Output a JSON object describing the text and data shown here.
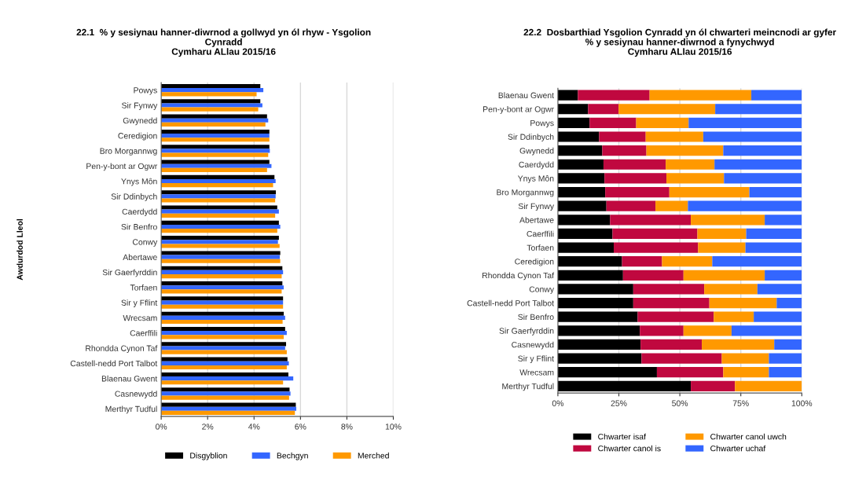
{
  "chart_data": [
    {
      "type": "bar",
      "orientation": "horizontal",
      "title": "22.1  % y sesiynau hanner-diwrnod a gollwyd yn ól rhyw - Ysgolion\nCynradd\nCymharu ALlau 2015/16",
      "ylabel": "Awdurdod Lleol",
      "categories": [
        "Powys",
        "Sir Fynwy",
        "Gwynedd",
        "Ceredigion",
        "Bro Morgannwg",
        "Pen-y-bont ar Ogwr",
        "Ynys Môn",
        "Sir Ddinbych",
        "Caerdydd",
        "Sir Benfro",
        "Conwy",
        "Abertawe",
        "Sir Gaerfyrddin",
        "Torfaen",
        "Sir y Fflint",
        "Wrecsam",
        "Caerffili",
        "Rhondda Cynon Taf",
        "Castell-nedd Port Talbot",
        "Blaenau Gwent",
        "Casnewydd",
        "Merthyr Tudful"
      ],
      "series": [
        {
          "name": "Disgyblion",
          "color": "#000000",
          "values": [
            4.27,
            4.27,
            4.56,
            4.66,
            4.66,
            4.66,
            4.88,
            4.94,
            5.0,
            5.07,
            5.07,
            5.13,
            5.22,
            5.22,
            5.25,
            5.28,
            5.34,
            5.38,
            5.44,
            5.48,
            5.53,
            5.8
          ]
        },
        {
          "name": "Bechgyn",
          "color": "#3366ff",
          "values": [
            4.4,
            4.36,
            4.61,
            4.66,
            4.68,
            4.75,
            4.93,
            4.93,
            5.07,
            5.13,
            5.03,
            5.11,
            5.25,
            5.28,
            5.25,
            5.34,
            5.41,
            5.34,
            5.5,
            5.69,
            5.57,
            5.82
          ]
        },
        {
          "name": "Merched",
          "color": "#ff9900",
          "values": [
            4.11,
            4.18,
            4.49,
            4.66,
            4.61,
            4.56,
            4.82,
            4.91,
            4.91,
            5.0,
            5.1,
            5.13,
            5.19,
            5.19,
            5.25,
            5.23,
            5.28,
            5.41,
            5.41,
            5.25,
            5.51,
            5.76
          ]
        }
      ],
      "xlim": [
        0,
        10
      ],
      "xticks": [
        {
          "value": 0,
          "label": "0%"
        },
        {
          "value": 2,
          "label": "2%"
        },
        {
          "value": 4,
          "label": "4%"
        },
        {
          "value": 6,
          "label": "6%"
        },
        {
          "value": 8,
          "label": "8%"
        },
        {
          "value": 10,
          "label": "10%"
        }
      ],
      "grid": "x",
      "legend": "bottom"
    },
    {
      "type": "bar",
      "orientation": "horizontal",
      "stacked": true,
      "title": "22.2  Dosbarthiad Ysgolion Cynradd yn ól chwarteri meincnodi ar gyfer\n% y sesiynau hanner-diwrnod a fynychwyd\nCymharu ALlau 2015/16",
      "categories": [
        "Blaenau Gwent",
        "Pen-y-bont ar Ogwr",
        "Powys",
        "Sir Ddinbych",
        "Gwynedd",
        "Caerdydd",
        "Ynys Môn",
        "Bro Morgannwg",
        "Sir Fynwy",
        "Abertawe",
        "Caerffili",
        "Torfaen",
        "Ceredigion",
        "Rhondda Cynon Taf",
        "Conwy",
        "Castell-nedd Port Talbot",
        "Sir Benfro",
        "Sir Gaerfyrddin",
        "Casnewydd",
        "Sir y Fflint",
        "Wrecsam",
        "Merthyr Tudful"
      ],
      "series": [
        {
          "name": "Chwarter isaf",
          "color": "#000000",
          "values": [
            8.2,
            12.4,
            13.0,
            16.9,
            18.2,
            18.7,
            19.1,
            19.4,
            19.9,
            21.4,
            22.4,
            22.9,
            26.3,
            26.7,
            30.9,
            30.9,
            32.7,
            33.6,
            33.9,
            34.3,
            40.6,
            54.5
          ]
        },
        {
          "name": "Chwarter canol is",
          "color": "#c0083f",
          "values": [
            29.4,
            12.5,
            19.1,
            19.1,
            18.1,
            25.5,
            25.4,
            26.3,
            20.1,
            33.1,
            34.8,
            34.6,
            16.4,
            24.8,
            29.1,
            31.2,
            31.2,
            17.9,
            25.1,
            32.9,
            27.2,
            18.1
          ]
        },
        {
          "name": "Chwarter canol uwch",
          "color": "#ff9900",
          "values": [
            41.7,
            39.6,
            21.5,
            23.6,
            31.5,
            20.0,
            23.6,
            32.8,
            13.3,
            30.3,
            20.0,
            19.4,
            20.6,
            33.3,
            21.8,
            27.6,
            16.4,
            19.7,
            29.7,
            19.3,
            18.7,
            27.4
          ]
        },
        {
          "name": "Chwarter uchaf",
          "color": "#3366ff",
          "values": [
            20.7,
            35.5,
            46.4,
            40.4,
            32.2,
            35.8,
            31.9,
            21.5,
            46.7,
            15.2,
            22.8,
            23.1,
            36.7,
            15.2,
            18.2,
            10.3,
            19.7,
            28.8,
            11.3,
            13.5,
            13.5,
            0
          ]
        }
      ],
      "xlim": [
        0,
        100
      ],
      "xticks": [
        {
          "value": 0,
          "label": "0%"
        },
        {
          "value": 25,
          "label": "25%"
        },
        {
          "value": 50,
          "label": "50%"
        },
        {
          "value": 75,
          "label": "75%"
        },
        {
          "value": 100,
          "label": "100%"
        }
      ],
      "grid": "x",
      "legend": "bottom"
    }
  ]
}
